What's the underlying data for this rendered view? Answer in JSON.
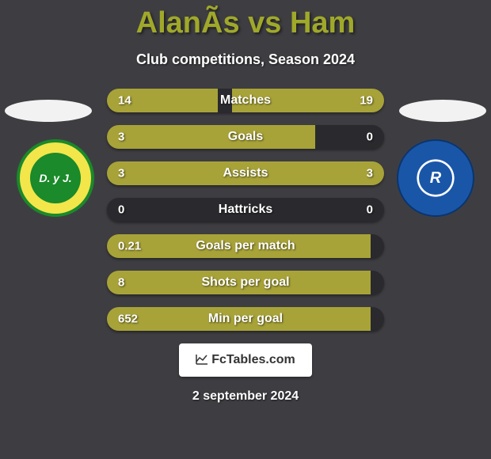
{
  "background_color": "#3e3e42",
  "title": "AlanÃs vs Ham",
  "title_color": "#a0a82a",
  "subtitle": "Club competitions, Season 2024",
  "date": "2 september 2024",
  "watermark": "FcTables.com",
  "crest_left": {
    "text": "D. y J."
  },
  "crest_right": {
    "text": "R"
  },
  "bar_track_color": "#2a2a2e",
  "bar_left_color": "#a8a338",
  "bar_right_color": "#a8a338",
  "stats": [
    {
      "label": "Matches",
      "left_val": "14",
      "right_val": "19",
      "left_pct": 40,
      "right_pct": 55
    },
    {
      "label": "Goals",
      "left_val": "3",
      "right_val": "0",
      "left_pct": 75,
      "right_pct": 0
    },
    {
      "label": "Assists",
      "left_val": "3",
      "right_val": "3",
      "left_pct": 50,
      "right_pct": 50
    },
    {
      "label": "Hattricks",
      "left_val": "0",
      "right_val": "0",
      "left_pct": 0,
      "right_pct": 0
    },
    {
      "label": "Goals per match",
      "left_val": "0.21",
      "right_val": "",
      "left_pct": 95,
      "right_pct": 0
    },
    {
      "label": "Shots per goal",
      "left_val": "8",
      "right_val": "",
      "left_pct": 95,
      "right_pct": 0
    },
    {
      "label": "Min per goal",
      "left_val": "652",
      "right_val": "",
      "left_pct": 95,
      "right_pct": 0
    }
  ]
}
